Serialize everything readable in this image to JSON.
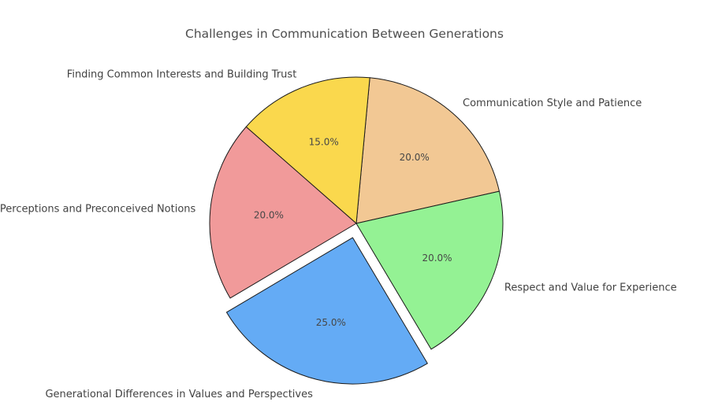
{
  "title": "Challenges in Communication Between Generations",
  "chart_data": {
    "type": "pie",
    "title": "Challenges in Communication Between Generations",
    "start_angle": 12.7,
    "direction": "counterclockwise",
    "legend_position": "none",
    "background": "#ffffff",
    "edge_color": "#1a1a1a",
    "pct_distance": 0.6,
    "label_distance": 1.1,
    "slices": [
      {
        "label": "Communication Style and Patience",
        "value": 20.0,
        "pct_label": "20.0%",
        "color": "#F2C894",
        "explode": 0
      },
      {
        "label": "Finding Common Interests and Building Trust",
        "value": 15.0,
        "pct_label": "15.0%",
        "color": "#FAD84D",
        "explode": 0
      },
      {
        "label": "Perceptions and Preconceived Notions",
        "value": 20.0,
        "pct_label": "20.0%",
        "color": "#F19A9A",
        "explode": 0
      },
      {
        "label": "Generational Differences in Values and Perspectives",
        "value": 25.0,
        "pct_label": "25.0%",
        "color": "#64ABF5",
        "explode": 0.1
      },
      {
        "label": "Respect and Value for Experience",
        "value": 20.0,
        "pct_label": "20.0%",
        "color": "#94F294",
        "explode": 0
      }
    ]
  }
}
